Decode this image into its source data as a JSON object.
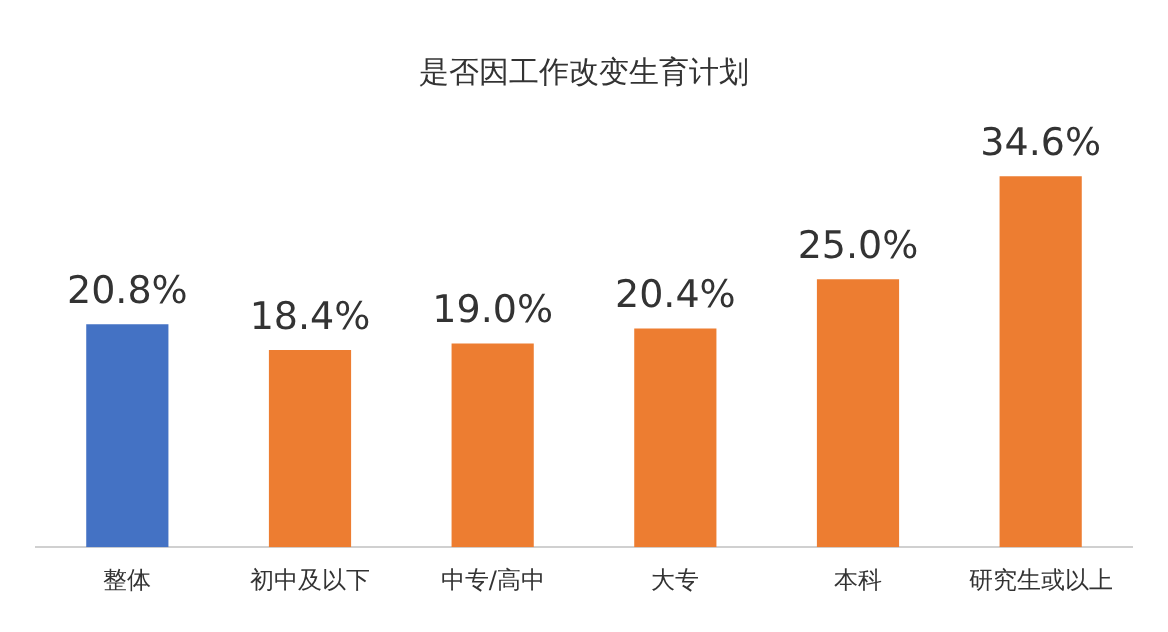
{
  "chart_data": {
    "type": "bar",
    "title": "是否因工作改变生育计划",
    "categories": [
      "整体",
      "初中及以下",
      "中专/高中",
      "大专",
      "本科",
      "研究生或以上"
    ],
    "values": [
      20.8,
      18.4,
      19.0,
      20.4,
      25.0,
      34.6
    ],
    "colors": [
      "#4472c4",
      "#ed7d31",
      "#ed7d31",
      "#ed7d31",
      "#ed7d31",
      "#ed7d31"
    ],
    "value_labels": [
      "20.8%",
      "18.4%",
      "19.0%",
      "20.4%",
      "25.0%",
      "34.6%"
    ],
    "grid": false,
    "legend": false
  }
}
